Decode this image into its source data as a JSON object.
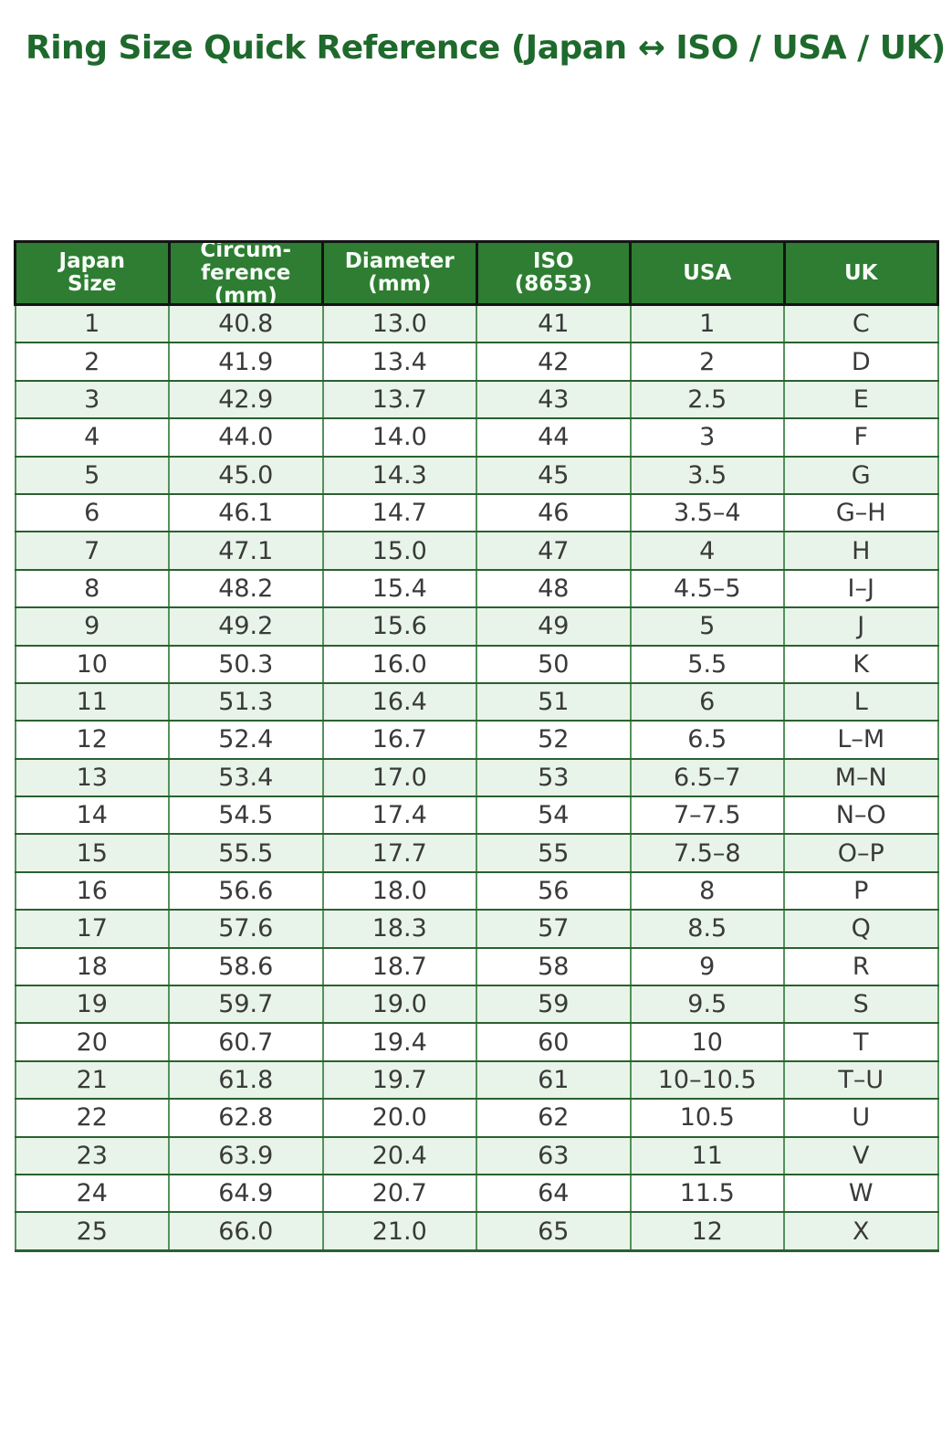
{
  "title": "Ring Size Quick Reference (Japan ↔ ISO / USA / UK)",
  "colors": {
    "title_text": "#1e692c",
    "header_bg": "#2e7d32",
    "header_text": "#f7fdf7",
    "row_alt_bg": "#e8f4e9",
    "row_bg": "#ffffff",
    "row_divider": "#2a6130",
    "column_divider": "#54925a",
    "header_border": "#141414",
    "cell_text": "#3a3a3a"
  },
  "table": {
    "headers": [
      "Japan\nSize",
      "Circum-\nference\n(mm)",
      "Diameter\n(mm)",
      "ISO\n(8653)",
      "USA",
      "UK"
    ]
  },
  "chart_data": {
    "type": "table",
    "title": "Ring Size Quick Reference (Japan ↔ ISO / USA / UK)",
    "columns": [
      "Japan Size",
      "Circumference (mm)",
      "Diameter (mm)",
      "ISO (8653)",
      "USA",
      "UK"
    ],
    "rows": [
      [
        "1",
        "40.8",
        "13.0",
        "41",
        "1",
        "C"
      ],
      [
        "2",
        "41.9",
        "13.4",
        "42",
        "2",
        "D"
      ],
      [
        "3",
        "42.9",
        "13.7",
        "43",
        "2.5",
        "E"
      ],
      [
        "4",
        "44.0",
        "14.0",
        "44",
        "3",
        "F"
      ],
      [
        "5",
        "45.0",
        "14.3",
        "45",
        "3.5",
        "G"
      ],
      [
        "6",
        "46.1",
        "14.7",
        "46",
        "3.5–4",
        "G–H"
      ],
      [
        "7",
        "47.1",
        "15.0",
        "47",
        "4",
        "H"
      ],
      [
        "8",
        "48.2",
        "15.4",
        "48",
        "4.5–5",
        "I–J"
      ],
      [
        "9",
        "49.2",
        "15.6",
        "49",
        "5",
        "J"
      ],
      [
        "10",
        "50.3",
        "16.0",
        "50",
        "5.5",
        "K"
      ],
      [
        "11",
        "51.3",
        "16.4",
        "51",
        "6",
        "L"
      ],
      [
        "12",
        "52.4",
        "16.7",
        "52",
        "6.5",
        "L–M"
      ],
      [
        "13",
        "53.4",
        "17.0",
        "53",
        "6.5–7",
        "M–N"
      ],
      [
        "14",
        "54.5",
        "17.4",
        "54",
        "7–7.5",
        "N–O"
      ],
      [
        "15",
        "55.5",
        "17.7",
        "55",
        "7.5–8",
        "O–P"
      ],
      [
        "16",
        "56.6",
        "18.0",
        "56",
        "8",
        "P"
      ],
      [
        "17",
        "57.6",
        "18.3",
        "57",
        "8.5",
        "Q"
      ],
      [
        "18",
        "58.6",
        "18.7",
        "58",
        "9",
        "R"
      ],
      [
        "19",
        "59.7",
        "19.0",
        "59",
        "9.5",
        "S"
      ],
      [
        "20",
        "60.7",
        "19.4",
        "60",
        "10",
        "T"
      ],
      [
        "21",
        "61.8",
        "19.7",
        "61",
        "10–10.5",
        "T–U"
      ],
      [
        "22",
        "62.8",
        "20.0",
        "62",
        "10.5",
        "U"
      ],
      [
        "23",
        "63.9",
        "20.4",
        "63",
        "11",
        "V"
      ],
      [
        "24",
        "64.9",
        "20.7",
        "64",
        "11.5",
        "W"
      ],
      [
        "25",
        "66.0",
        "21.0",
        "65",
        "12",
        "X"
      ]
    ]
  }
}
